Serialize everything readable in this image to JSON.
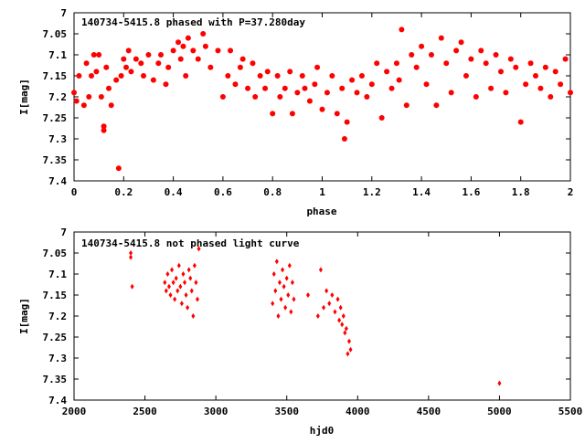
{
  "chart_data": [
    {
      "type": "scatter",
      "title": "140734-5415.8 phased with P=37.280day",
      "xlabel": "phase",
      "ylabel": "I[mag]",
      "xlim": [
        0,
        2
      ],
      "ylim": [
        7.4,
        7.0
      ],
      "y_inverted": true,
      "grid": false,
      "marker_color": "#ff0000",
      "marker": "filled-circle-large",
      "x_ticks": [
        "0",
        "0.2",
        "0.4",
        "0.6",
        "0.8",
        "1",
        "1.2",
        "1.4",
        "1.6",
        "1.8",
        "2"
      ],
      "y_ticks": [
        "7",
        "7.05",
        "7.1",
        "7.15",
        "7.2",
        "7.25",
        "7.3",
        "7.35",
        "7.4"
      ],
      "series": [
        {
          "x": [
            0.0,
            0.01,
            0.02,
            0.04,
            0.05,
            0.06,
            0.07,
            0.08,
            0.09,
            0.1,
            0.11,
            0.12,
            0.12,
            0.13,
            0.14,
            0.15,
            0.17,
            0.18,
            0.19,
            0.2,
            0.21,
            0.22,
            0.23,
            0.25,
            0.27,
            0.28,
            0.3,
            0.32,
            0.34,
            0.35,
            0.37,
            0.38,
            0.4,
            0.42,
            0.43,
            0.44,
            0.45,
            0.46,
            0.48,
            0.5,
            0.52,
            0.53,
            0.55,
            0.58,
            0.6,
            0.62,
            0.63,
            0.65,
            0.67,
            0.68,
            0.7,
            0.72,
            0.73,
            0.75,
            0.77,
            0.78,
            0.8,
            0.82,
            0.83,
            0.85,
            0.87,
            0.88,
            0.9,
            0.92,
            0.93,
            0.95,
            0.97,
            0.98,
            1.0,
            1.02,
            1.04,
            1.06,
            1.08,
            1.09,
            1.1,
            1.12,
            1.14,
            1.16,
            1.18,
            1.2,
            1.22,
            1.24,
            1.26,
            1.28,
            1.3,
            1.31,
            1.32,
            1.34,
            1.36,
            1.38,
            1.4,
            1.42,
            1.44,
            1.46,
            1.48,
            1.5,
            1.52,
            1.54,
            1.56,
            1.58,
            1.6,
            1.62,
            1.64,
            1.66,
            1.68,
            1.7,
            1.72,
            1.74,
            1.76,
            1.78,
            1.8,
            1.82,
            1.84,
            1.86,
            1.88,
            1.9,
            1.92,
            1.94,
            1.96,
            1.98,
            2.0
          ],
          "y": [
            7.19,
            7.21,
            7.15,
            7.22,
            7.12,
            7.2,
            7.15,
            7.1,
            7.14,
            7.1,
            7.2,
            7.27,
            7.28,
            7.13,
            7.18,
            7.22,
            7.16,
            7.37,
            7.15,
            7.11,
            7.13,
            7.09,
            7.14,
            7.11,
            7.12,
            7.15,
            7.1,
            7.16,
            7.12,
            7.1,
            7.17,
            7.13,
            7.09,
            7.07,
            7.11,
            7.08,
            7.15,
            7.06,
            7.09,
            7.11,
            7.05,
            7.08,
            7.13,
            7.09,
            7.2,
            7.15,
            7.09,
            7.17,
            7.13,
            7.11,
            7.18,
            7.12,
            7.2,
            7.15,
            7.18,
            7.14,
            7.24,
            7.15,
            7.2,
            7.18,
            7.14,
            7.24,
            7.19,
            7.15,
            7.18,
            7.21,
            7.17,
            7.13,
            7.23,
            7.19,
            7.15,
            7.24,
            7.18,
            7.3,
            7.26,
            7.16,
            7.19,
            7.15,
            7.2,
            7.17,
            7.12,
            7.25,
            7.14,
            7.18,
            7.12,
            7.16,
            7.04,
            7.22,
            7.1,
            7.13,
            7.08,
            7.17,
            7.1,
            7.22,
            7.06,
            7.12,
            7.19,
            7.09,
            7.07,
            7.15,
            7.11,
            7.2,
            7.09,
            7.12,
            7.18,
            7.1,
            7.14,
            7.19,
            7.11,
            7.13,
            7.26,
            7.17,
            7.12,
            7.15,
            7.18,
            7.13,
            7.2,
            7.14,
            7.17,
            7.11,
            7.19
          ]
        }
      ]
    },
    {
      "type": "scatter",
      "title": "140734-5415.8 not phased light curve",
      "xlabel": "hjd0",
      "ylabel": "I[mag]",
      "xlim": [
        2000,
        5500
      ],
      "ylim": [
        7.4,
        7.0
      ],
      "y_inverted": true,
      "grid": false,
      "marker_color": "#ff0000",
      "marker": "diamond-small",
      "x_ticks": [
        "2000",
        "2500",
        "3000",
        "3500",
        "4000",
        "4500",
        "5000",
        "5500"
      ],
      "y_ticks": [
        "7",
        "7.05",
        "7.1",
        "7.15",
        "7.2",
        "7.25",
        "7.3",
        "7.35",
        "7.4"
      ],
      "series": [
        {
          "x": [
            2400,
            2400,
            2410,
            2640,
            2650,
            2660,
            2670,
            2680,
            2690,
            2700,
            2710,
            2720,
            2730,
            2740,
            2750,
            2760,
            2770,
            2780,
            2790,
            2800,
            2810,
            2820,
            2830,
            2840,
            2850,
            2860,
            2870,
            2880,
            3400,
            3410,
            3420,
            3430,
            3440,
            3450,
            3460,
            3470,
            3480,
            3490,
            3500,
            3510,
            3520,
            3530,
            3540,
            3550,
            3650,
            3720,
            3740,
            3760,
            3780,
            3800,
            3820,
            3840,
            3860,
            3870,
            3880,
            3890,
            3900,
            3910,
            3920,
            3930,
            3940,
            3950,
            5000
          ],
          "y": [
            7.05,
            7.06,
            7.13,
            7.12,
            7.14,
            7.1,
            7.13,
            7.15,
            7.09,
            7.12,
            7.16,
            7.11,
            7.14,
            7.08,
            7.13,
            7.17,
            7.1,
            7.12,
            7.15,
            7.18,
            7.09,
            7.11,
            7.14,
            7.2,
            7.08,
            7.12,
            7.16,
            7.04,
            7.17,
            7.1,
            7.14,
            7.07,
            7.2,
            7.12,
            7.16,
            7.09,
            7.13,
            7.18,
            7.11,
            7.15,
            7.08,
            7.19,
            7.12,
            7.16,
            7.15,
            7.2,
            7.09,
            7.18,
            7.14,
            7.17,
            7.15,
            7.19,
            7.16,
            7.21,
            7.18,
            7.22,
            7.2,
            7.24,
            7.23,
            7.29,
            7.26,
            7.28,
            7.36
          ]
        }
      ]
    }
  ]
}
